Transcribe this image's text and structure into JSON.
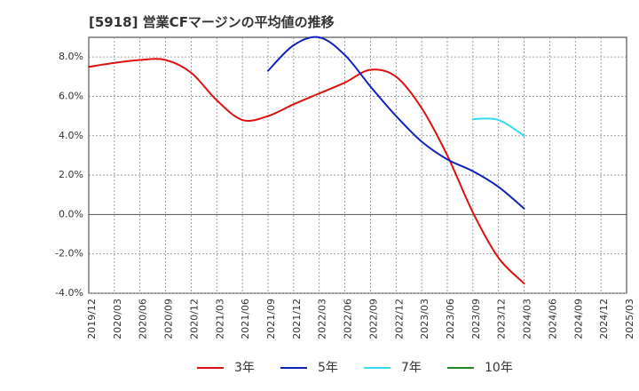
{
  "chart_data": {
    "type": "line",
    "title": "[5918]  営業CFマージンの平均値の推移",
    "xlabel": "",
    "ylabel": "",
    "x_ticks": [
      "2019/12",
      "2020/03",
      "2020/06",
      "2020/09",
      "2020/12",
      "2021/03",
      "2021/06",
      "2021/09",
      "2021/12",
      "2022/03",
      "2022/06",
      "2022/09",
      "2022/12",
      "2023/03",
      "2023/06",
      "2023/09",
      "2023/12",
      "2024/03",
      "2024/06",
      "2024/09",
      "2024/12",
      "2025/03"
    ],
    "y_ticks": [
      "8.0%",
      "6.0%",
      "4.0%",
      "2.0%",
      "0.0%",
      "-2.0%",
      "-4.0%"
    ],
    "ylim": [
      -4.0,
      9.0
    ],
    "grid": true,
    "legend_position": "bottom",
    "colors": {
      "3年": "#dd1111",
      "5年": "#1122bb",
      "7年": "#33ddee",
      "10年": "#228822"
    },
    "series": [
      {
        "name": "3年",
        "x": [
          "2019/12",
          "2020/03",
          "2020/06",
          "2020/09",
          "2020/12",
          "2021/03",
          "2021/06",
          "2021/09",
          "2021/12",
          "2022/03",
          "2022/06",
          "2022/09",
          "2022/12",
          "2023/03",
          "2023/06",
          "2023/09",
          "2023/12",
          "2024/03"
        ],
        "values": [
          7.5,
          7.7,
          7.85,
          7.85,
          7.2,
          5.8,
          4.8,
          5.0,
          5.6,
          6.15,
          6.7,
          7.35,
          7.0,
          5.4,
          3.0,
          0.1,
          -2.2,
          -3.5
        ]
      },
      {
        "name": "5年",
        "x": [
          "2021/09",
          "2021/12",
          "2022/03",
          "2022/06",
          "2022/09",
          "2022/12",
          "2023/03",
          "2023/06",
          "2023/09",
          "2023/12",
          "2024/03"
        ],
        "values": [
          7.3,
          8.6,
          9.0,
          8.1,
          6.5,
          5.0,
          3.7,
          2.8,
          2.2,
          1.4,
          0.3
        ]
      },
      {
        "name": "7年",
        "x": [
          "2023/09",
          "2023/12",
          "2024/03"
        ],
        "values": [
          4.85,
          4.8,
          4.0
        ]
      },
      {
        "name": "10年",
        "x": [],
        "values": []
      }
    ],
    "legend": [
      "3年",
      "5年",
      "7年",
      "10年"
    ]
  }
}
